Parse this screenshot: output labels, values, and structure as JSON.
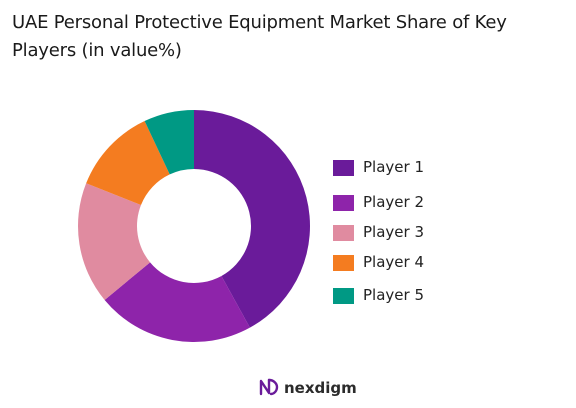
{
  "chart_data": {
    "type": "pie",
    "title": "UAE Personal Protective Equipment Market Share of Key Players (in value%)",
    "categories": [
      "Player 1",
      "Player 2",
      "Player 3",
      "Player 4",
      "Player 5"
    ],
    "values": [
      42,
      22,
      17,
      12,
      7
    ],
    "colors": [
      "#6a1b9a",
      "#8e24aa",
      "#e08ba0",
      "#f47c20",
      "#009984"
    ],
    "donut": true,
    "legend": "right"
  },
  "brand": {
    "name": "nexdigm",
    "icon": "nexdigm-logo-icon"
  }
}
